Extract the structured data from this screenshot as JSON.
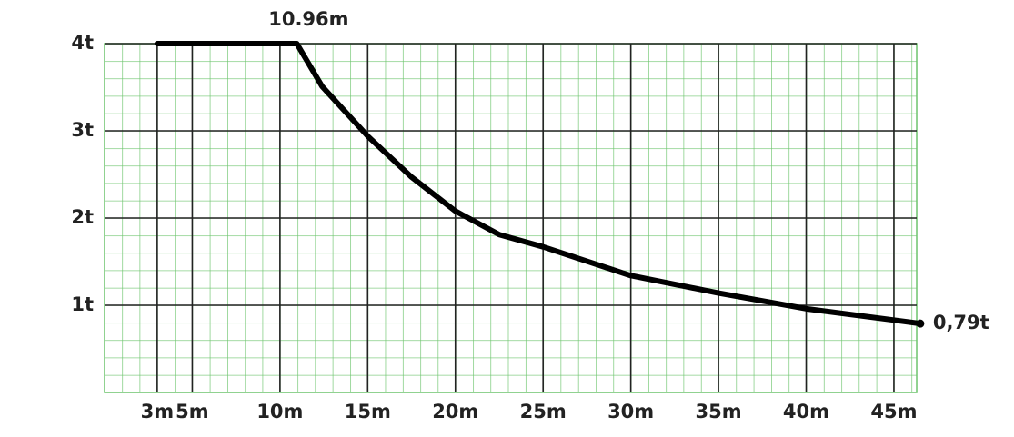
{
  "chart_data": {
    "type": "line",
    "x": [
      3,
      10.96,
      12.4,
      15,
      17.5,
      20,
      22.5,
      25,
      30,
      35,
      40,
      45,
      46.5
    ],
    "x_labels": [
      null,
      "10.96m",
      null,
      null,
      null,
      null,
      null,
      null,
      null,
      null,
      null,
      null,
      null
    ],
    "series": [
      {
        "color": "#000000",
        "values": [
          4,
          4,
          3.51,
          2.94,
          2.47,
          2.08,
          1.81,
          1.67,
          1.34,
          1.14,
          0.96,
          0.83,
          0.79
        ],
        "value_labels": [
          null,
          null,
          null,
          null,
          null,
          null,
          null,
          null,
          null,
          null,
          null,
          null,
          "0,79t"
        ]
      }
    ],
    "xlim": [
      0,
      46.3
    ],
    "ylim": [
      0,
      4
    ],
    "xticks": [
      {
        "value": 3,
        "label": "3m"
      },
      {
        "value": 5,
        "label": "5m"
      },
      {
        "value": 10,
        "label": "10m"
      },
      {
        "value": 15,
        "label": "15m"
      },
      {
        "value": 20,
        "label": "20m"
      },
      {
        "value": 25,
        "label": "25m"
      },
      {
        "value": 30,
        "label": "30m"
      },
      {
        "value": 35,
        "label": "35m"
      },
      {
        "value": 40,
        "label": "40m"
      },
      {
        "value": 45,
        "label": "45m"
      }
    ],
    "yticks": [
      {
        "value": 1,
        "label": "1t"
      },
      {
        "value": 2,
        "label": "2t"
      },
      {
        "value": 3,
        "label": "3t"
      },
      {
        "value": 4,
        "label": "4t"
      }
    ],
    "grid": true
  }
}
